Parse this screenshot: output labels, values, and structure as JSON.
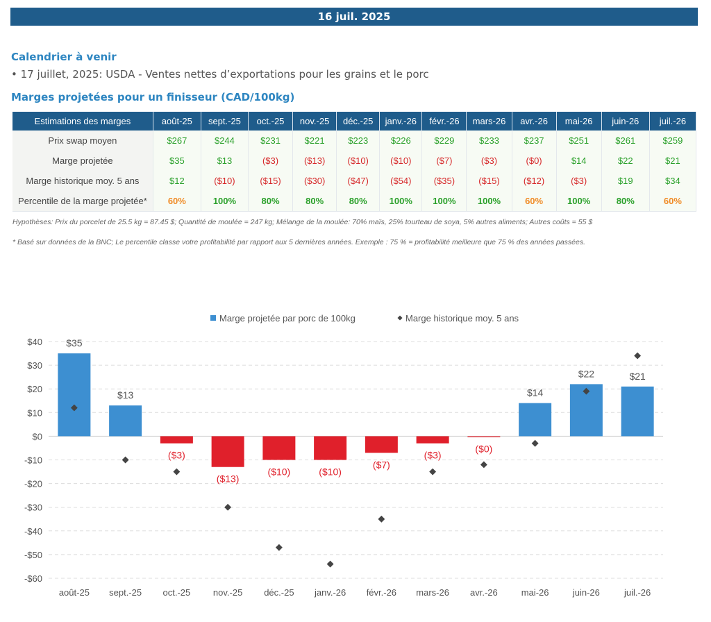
{
  "header": {
    "date": "16 juil. 2025"
  },
  "calendar": {
    "title": "Calendrier à venir",
    "item": "• 17 juillet, 2025: USDA - Ventes nettes d’exportations pour les grains et le porc"
  },
  "margins": {
    "title": "Marges projetées pour un finisseur (CAD/100kg)",
    "corner_header": "Estimations des marges",
    "months": [
      "août-25",
      "sept.-25",
      "oct.-25",
      "nov.-25",
      "déc.-25",
      "janv.-26",
      "févr.-26",
      "mars-26",
      "avr.-26",
      "mai-26",
      "juin-26",
      "juil.-26"
    ],
    "rows": [
      {
        "label": "Prix swap moyen",
        "cells": [
          {
            "text": "$267",
            "tone": "pos"
          },
          {
            "text": "$244",
            "tone": "pos"
          },
          {
            "text": "$231",
            "tone": "pos"
          },
          {
            "text": "$221",
            "tone": "pos"
          },
          {
            "text": "$223",
            "tone": "pos"
          },
          {
            "text": "$226",
            "tone": "pos"
          },
          {
            "text": "$229",
            "tone": "pos"
          },
          {
            "text": "$233",
            "tone": "pos"
          },
          {
            "text": "$237",
            "tone": "pos"
          },
          {
            "text": "$251",
            "tone": "pos"
          },
          {
            "text": "$261",
            "tone": "pos"
          },
          {
            "text": "$259",
            "tone": "pos"
          }
        ]
      },
      {
        "label": "Marge projetée",
        "cells": [
          {
            "text": "$35",
            "tone": "pos"
          },
          {
            "text": "$13",
            "tone": "pos"
          },
          {
            "text": "($3)",
            "tone": "neg"
          },
          {
            "text": "($13)",
            "tone": "neg"
          },
          {
            "text": "($10)",
            "tone": "neg"
          },
          {
            "text": "($10)",
            "tone": "neg"
          },
          {
            "text": "($7)",
            "tone": "neg"
          },
          {
            "text": "($3)",
            "tone": "neg"
          },
          {
            "text": "($0)",
            "tone": "neg"
          },
          {
            "text": "$14",
            "tone": "pos"
          },
          {
            "text": "$22",
            "tone": "pos"
          },
          {
            "text": "$21",
            "tone": "pos"
          }
        ]
      },
      {
        "label": "Marge historique moy. 5 ans",
        "cells": [
          {
            "text": "$12",
            "tone": "pos"
          },
          {
            "text": "($10)",
            "tone": "neg"
          },
          {
            "text": "($15)",
            "tone": "neg"
          },
          {
            "text": "($30)",
            "tone": "neg"
          },
          {
            "text": "($47)",
            "tone": "neg"
          },
          {
            "text": "($54)",
            "tone": "neg"
          },
          {
            "text": "($35)",
            "tone": "neg"
          },
          {
            "text": "($15)",
            "tone": "neg"
          },
          {
            "text": "($12)",
            "tone": "neg"
          },
          {
            "text": "($3)",
            "tone": "neg"
          },
          {
            "text": "$19",
            "tone": "pos"
          },
          {
            "text": "$34",
            "tone": "pos"
          }
        ]
      },
      {
        "label": "Percentile de la marge projetée*",
        "cells": [
          {
            "text": "60%",
            "tone": "pct-orange"
          },
          {
            "text": "100%",
            "tone": "pct-green"
          },
          {
            "text": "80%",
            "tone": "pct-green"
          },
          {
            "text": "80%",
            "tone": "pct-green"
          },
          {
            "text": "80%",
            "tone": "pct-green"
          },
          {
            "text": "100%",
            "tone": "pct-green"
          },
          {
            "text": "100%",
            "tone": "pct-green"
          },
          {
            "text": "100%",
            "tone": "pct-green"
          },
          {
            "text": "60%",
            "tone": "pct-orange"
          },
          {
            "text": "100%",
            "tone": "pct-green"
          },
          {
            "text": "80%",
            "tone": "pct-green"
          },
          {
            "text": "60%",
            "tone": "pct-orange"
          }
        ]
      }
    ]
  },
  "notes": {
    "hypotheses": "Hypothèses: Prix du porcelet de 25.5 kg = 87.45 $; Quantité de moulée = 247 kg; Mélange de la moulée: 70% maïs, 25% tourteau de soya, 5% autres aliments; Autres coûts = 55 $",
    "footnote": "* Basé sur données de la BNC; Le percentile classe votre profitabilité par rapport aux 5 dernières années. Exemple : 75 % = profitabilité meilleure que 75 % des années passées."
  },
  "colors": {
    "header_blue": "#1f5c8b",
    "title_blue": "#2e86c1",
    "bar_positive": "#3d8fd1",
    "bar_negative": "#e0202b",
    "marker": "#444444",
    "positive_text": "#2aa02a",
    "negative_text": "#d62728",
    "orange_text": "#f08a24"
  },
  "chart_data": {
    "type": "bar",
    "categories": [
      "août-25",
      "sept.-25",
      "oct.-25",
      "nov.-25",
      "déc.-25",
      "janv.-26",
      "févr.-26",
      "mars-26",
      "avr.-26",
      "mai-26",
      "juin-26",
      "juil.-26"
    ],
    "series": [
      {
        "name": "Marge projetée par porc de 100kg",
        "kind": "bar",
        "values": [
          35,
          13,
          -3,
          -13,
          -10,
          -10,
          -7,
          -3,
          -0.2,
          14,
          22,
          21
        ],
        "labels": [
          "$35",
          "$13",
          "($3)",
          "($13)",
          "($10)",
          "($10)",
          "($7)",
          "($3)",
          "($0)",
          "$14",
          "$22",
          "$21"
        ]
      },
      {
        "name": "Marge historique moy. 5 ans",
        "kind": "marker",
        "values": [
          12,
          -10,
          -15,
          -30,
          -47,
          -54,
          -35,
          -15,
          -12,
          -3,
          19,
          34
        ]
      }
    ],
    "ylim": [
      -60,
      40
    ],
    "yticks": [
      40,
      30,
      20,
      10,
      0,
      -10,
      -20,
      -30,
      -40,
      -50,
      -60
    ],
    "ytick_labels": [
      "$40",
      "$30",
      "$20",
      "$10",
      "$0",
      "-$10",
      "-$20",
      "-$30",
      "-$40",
      "-$50",
      "-$60"
    ],
    "grid": true,
    "legend_position": "top-center",
    "title": "",
    "xlabel": "",
    "ylabel": ""
  }
}
